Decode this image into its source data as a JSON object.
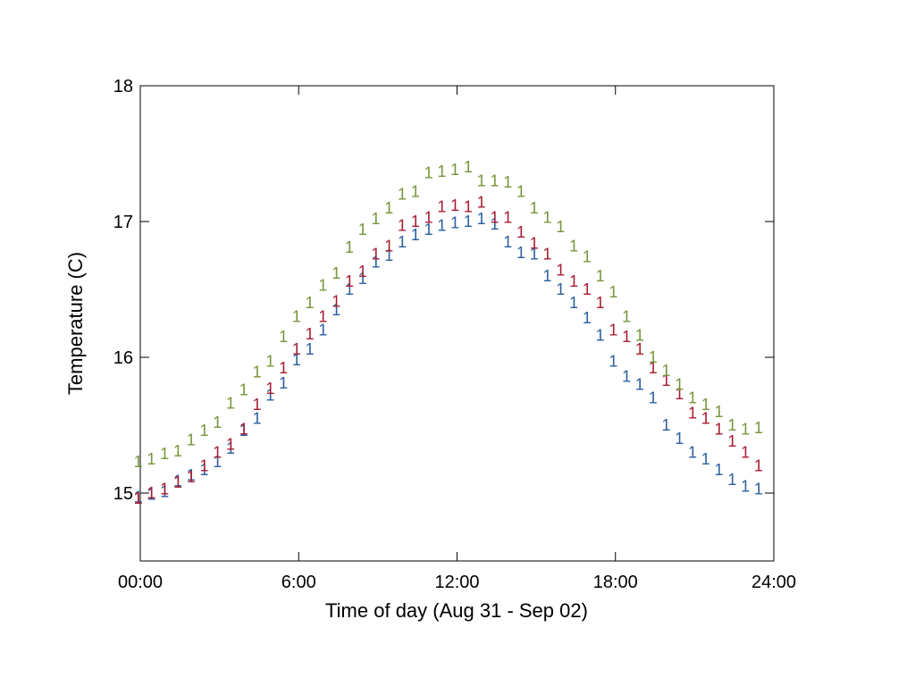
{
  "chart_data": {
    "type": "scatter",
    "xlabel": "Time of day (Aug 31 - Sep 02)",
    "ylabel": "Temperature (C)",
    "xlim": [
      "00:00",
      "24:00"
    ],
    "ylim": [
      14.5,
      18
    ],
    "x_ticks": [
      "00:00",
      "6:00",
      "12:00",
      "18:00",
      "24:00"
    ],
    "y_ticks": [
      "15",
      "16",
      "17",
      "18"
    ],
    "grid": false,
    "legend": "none",
    "marker_text": "1",
    "x_hours": [
      -0.08,
      0.42,
      0.92,
      1.42,
      1.92,
      2.42,
      2.92,
      3.42,
      3.92,
      4.42,
      4.92,
      5.42,
      5.92,
      6.42,
      6.92,
      7.42,
      7.92,
      8.42,
      8.92,
      9.42,
      9.92,
      10.42,
      10.92,
      11.42,
      11.92,
      12.42,
      12.92,
      13.42,
      13.92,
      14.42,
      14.92,
      15.42,
      15.92,
      16.42,
      16.92,
      17.42,
      17.92,
      18.42,
      18.92,
      19.42,
      19.92,
      20.42,
      20.92,
      21.42,
      21.92,
      22.42,
      22.92,
      23.42
    ],
    "series": [
      {
        "color": "#2a5fa0",
        "values": [
          14.97,
          14.99,
          15.01,
          15.09,
          15.13,
          15.17,
          15.23,
          15.33,
          15.46,
          15.55,
          15.72,
          15.81,
          15.98,
          16.06,
          16.2,
          16.35,
          16.5,
          16.58,
          16.7,
          16.75,
          16.85,
          16.9,
          16.94,
          16.97,
          16.99,
          17.0,
          17.02,
          16.98,
          16.85,
          16.77,
          16.76,
          16.6,
          16.5,
          16.4,
          16.29,
          16.16,
          15.97,
          15.86,
          15.8,
          15.7,
          15.5,
          15.4,
          15.3,
          15.25,
          15.17,
          15.1,
          15.05,
          15.03
        ]
      },
      {
        "color": "#a81c30",
        "values": [
          14.96,
          15.0,
          15.03,
          15.08,
          15.12,
          15.2,
          15.3,
          15.36,
          15.47,
          15.65,
          15.77,
          15.92,
          16.06,
          16.17,
          16.3,
          16.41,
          16.56,
          16.63,
          16.76,
          16.82,
          16.97,
          17.0,
          17.03,
          17.11,
          17.12,
          17.11,
          17.14,
          17.03,
          17.03,
          16.92,
          16.84,
          16.76,
          16.64,
          16.56,
          16.5,
          16.4,
          16.2,
          16.15,
          16.06,
          15.92,
          15.83,
          15.73,
          15.59,
          15.55,
          15.47,
          15.38,
          15.3,
          15.2
        ]
      },
      {
        "color": "#77953a",
        "values": [
          15.23,
          15.25,
          15.29,
          15.31,
          15.39,
          15.46,
          15.52,
          15.66,
          15.76,
          15.89,
          15.97,
          16.15,
          16.3,
          16.4,
          16.53,
          16.62,
          16.81,
          16.94,
          17.02,
          17.1,
          17.2,
          17.22,
          17.36,
          17.37,
          17.38,
          17.4,
          17.3,
          17.3,
          17.29,
          17.22,
          17.1,
          17.03,
          16.96,
          16.82,
          16.74,
          16.6,
          16.48,
          16.3,
          16.16,
          16.0,
          15.9,
          15.8,
          15.7,
          15.65,
          15.6,
          15.5,
          15.47,
          15.48
        ]
      }
    ]
  }
}
